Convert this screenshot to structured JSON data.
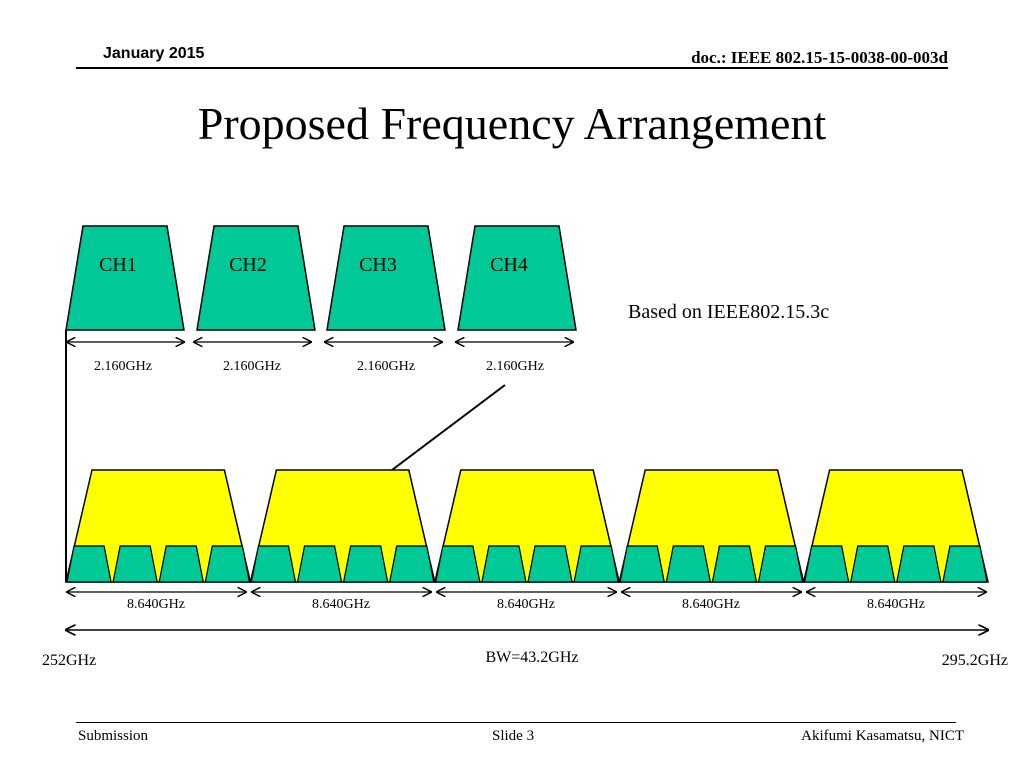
{
  "header": {
    "date": "January 2015",
    "doc": "doc.: IEEE 802.15-15-0038-00-003d"
  },
  "title": "Proposed Frequency Arrangement",
  "diagram": {
    "channels": [
      {
        "label": "CH1",
        "bandwidth": "2.160GHz"
      },
      {
        "label": "CH2",
        "bandwidth": "2.160GHz"
      },
      {
        "label": "CH3",
        "bandwidth": "2.160GHz"
      },
      {
        "label": "CH4",
        "bandwidth": "2.160GHz"
      }
    ],
    "note": "Based on IEEE802.15.3c",
    "wide_channels": [
      {
        "bandwidth": "8.640GHz"
      },
      {
        "bandwidth": "8.640GHz"
      },
      {
        "bandwidth": "8.640GHz"
      },
      {
        "bandwidth": "8.640GHz"
      },
      {
        "bandwidth": "8.640GHz"
      }
    ],
    "total_bandwidth": "BW=43.2GHz",
    "start_freq": "252GHz",
    "end_freq": "295.2GHz",
    "colors": {
      "green": "#00C896",
      "yellow": "#FFFF00",
      "stroke": "#000000"
    }
  },
  "footer": {
    "left": "Submission",
    "center": "Slide 3",
    "right": "Akifumi Kasamatsu, NICT"
  }
}
